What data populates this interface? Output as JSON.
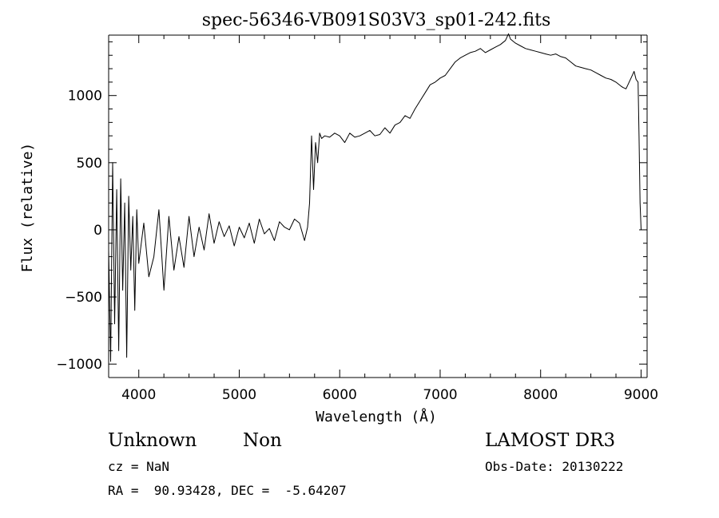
{
  "chart_data": {
    "type": "line",
    "title": "spec-56346-VB091S03V3_sp01-242.fits",
    "xlabel": "Wavelength (Å)",
    "ylabel": "Flux (relative)",
    "xlim": [
      3700,
      9060
    ],
    "ylim": [
      -1100,
      1450
    ],
    "x_ticks": [
      4000,
      5000,
      6000,
      7000,
      8000,
      9000
    ],
    "y_ticks": [
      -1000,
      -500,
      0,
      500,
      1000
    ],
    "grid": false,
    "series": [
      {
        "x": [
          3700,
          3720,
          3740,
          3760,
          3780,
          3800,
          3820,
          3840,
          3860,
          3880,
          3900,
          3920,
          3940,
          3960,
          3980,
          4000,
          4050,
          4100,
          4150,
          4200,
          4250,
          4300,
          4350,
          4400,
          4450,
          4500,
          4550,
          4600,
          4650,
          4700,
          4750,
          4800,
          4850,
          4900,
          4950,
          5000,
          5050,
          5100,
          5150,
          5200,
          5250,
          5300,
          5350,
          5400,
          5450,
          5500,
          5550,
          5600,
          5650,
          5680,
          5700,
          5720,
          5740,
          5760,
          5780,
          5800,
          5820,
          5850,
          5900,
          5950,
          6000,
          6050,
          6100,
          6150,
          6200,
          6250,
          6300,
          6350,
          6400,
          6450,
          6500,
          6550,
          6600,
          6650,
          6700,
          6750,
          6800,
          6850,
          6900,
          6950,
          7000,
          7050,
          7100,
          7150,
          7200,
          7250,
          7300,
          7350,
          7400,
          7450,
          7500,
          7550,
          7600,
          7650,
          7680,
          7700,
          7750,
          7800,
          7850,
          7900,
          7950,
          8000,
          8050,
          8100,
          8150,
          8200,
          8250,
          8300,
          8350,
          8400,
          8450,
          8500,
          8550,
          8600,
          8650,
          8700,
          8750,
          8800,
          8820,
          8850,
          8900,
          8930,
          8950,
          8970,
          8980,
          8990,
          9000
        ],
        "y": [
          -150,
          -980,
          500,
          -700,
          300,
          -900,
          380,
          -450,
          200,
          -950,
          250,
          -300,
          100,
          -600,
          150,
          -250,
          50,
          -350,
          -200,
          150,
          -450,
          100,
          -300,
          -50,
          -280,
          100,
          -200,
          20,
          -150,
          120,
          -100,
          60,
          -50,
          30,
          -120,
          20,
          -60,
          50,
          -100,
          80,
          -30,
          10,
          -80,
          60,
          20,
          0,
          80,
          50,
          -80,
          20,
          200,
          700,
          300,
          650,
          500,
          720,
          680,
          700,
          690,
          720,
          700,
          650,
          720,
          690,
          700,
          720,
          740,
          700,
          710,
          760,
          720,
          780,
          800,
          850,
          830,
          900,
          960,
          1020,
          1080,
          1100,
          1130,
          1150,
          1200,
          1250,
          1280,
          1300,
          1320,
          1330,
          1350,
          1320,
          1340,
          1360,
          1380,
          1410,
          1460,
          1420,
          1390,
          1370,
          1350,
          1340,
          1330,
          1320,
          1310,
          1300,
          1310,
          1290,
          1280,
          1250,
          1220,
          1210,
          1200,
          1190,
          1170,
          1150,
          1130,
          1120,
          1100,
          1070,
          1060,
          1050,
          1130,
          1180,
          1120,
          1100,
          700,
          200,
          0
        ]
      }
    ],
    "annotations": {
      "object_class": "Unknown",
      "object_subclass": "Non",
      "survey": "LAMOST DR3",
      "redshift": "cz = NaN",
      "obs_date": "Obs-Date: 20130222",
      "coordinates": "RA =  90.93428, DEC =  -5.64207"
    }
  }
}
